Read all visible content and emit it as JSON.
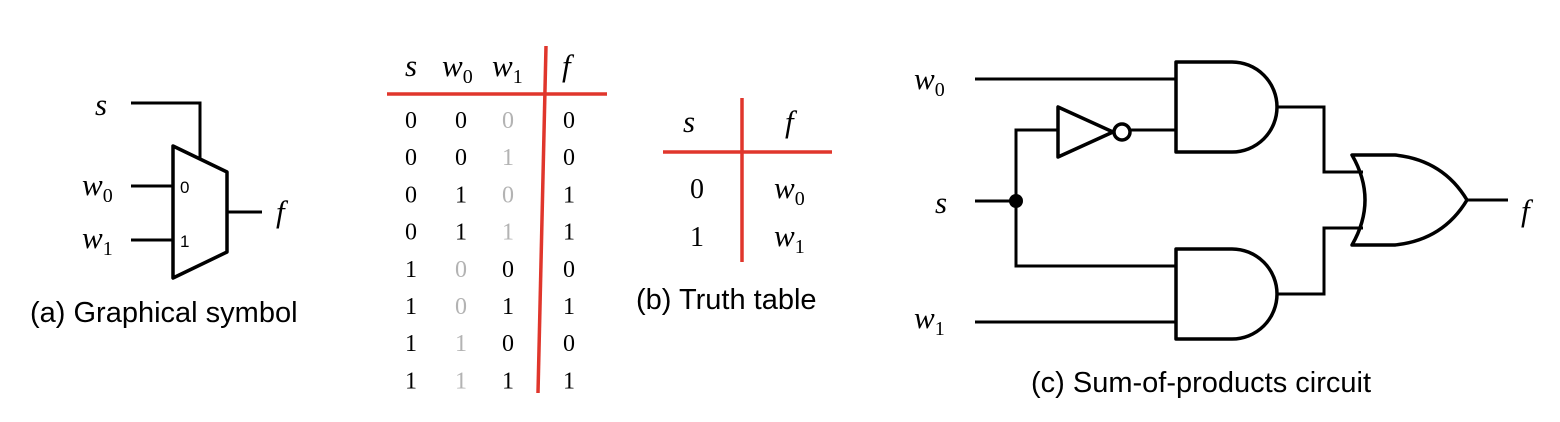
{
  "symbol": {
    "s": "s",
    "w0": "w",
    "w0_sub": "0",
    "w1": "w",
    "w1_sub": "1",
    "f": "f",
    "in0": "0",
    "in1": "1",
    "caption": "(a) Graphical symbol"
  },
  "full_table": {
    "headers": [
      {
        "main": "s",
        "sub": ""
      },
      {
        "main": "w",
        "sub": "0"
      },
      {
        "main": "w",
        "sub": "1"
      },
      {
        "main": "f",
        "sub": ""
      }
    ],
    "rows": [
      {
        "cells": [
          "0",
          "0",
          "0",
          "0"
        ],
        "dim": [
          2
        ]
      },
      {
        "cells": [
          "0",
          "0",
          "1",
          "0"
        ],
        "dim": [
          2
        ]
      },
      {
        "cells": [
          "0",
          "1",
          "0",
          "1"
        ],
        "dim": [
          2
        ]
      },
      {
        "cells": [
          "0",
          "1",
          "1",
          "1"
        ],
        "dim": [
          2
        ]
      },
      {
        "cells": [
          "1",
          "0",
          "0",
          "0"
        ],
        "dim": [
          1
        ]
      },
      {
        "cells": [
          "1",
          "0",
          "1",
          "1"
        ],
        "dim": [
          1
        ]
      },
      {
        "cells": [
          "1",
          "1",
          "0",
          "0"
        ],
        "dim": [
          1
        ]
      },
      {
        "cells": [
          "1",
          "1",
          "1",
          "1"
        ],
        "dim": [
          1
        ]
      }
    ]
  },
  "truth_table": {
    "header_s": "s",
    "header_f": "f",
    "rows": [
      {
        "s": "0",
        "f": "w",
        "f_sub": "0"
      },
      {
        "s": "1",
        "f": "w",
        "f_sub": "1"
      }
    ],
    "caption": "(b) Truth table"
  },
  "circuit": {
    "w0": "w",
    "w0_sub": "0",
    "s": "s",
    "w1": "w",
    "w1_sub": "1",
    "f": "f",
    "caption": "(c) Sum-of-products circuit"
  },
  "colors": {
    "accent_red": "#e0362c",
    "dim_gray": "#b3b3b3"
  }
}
